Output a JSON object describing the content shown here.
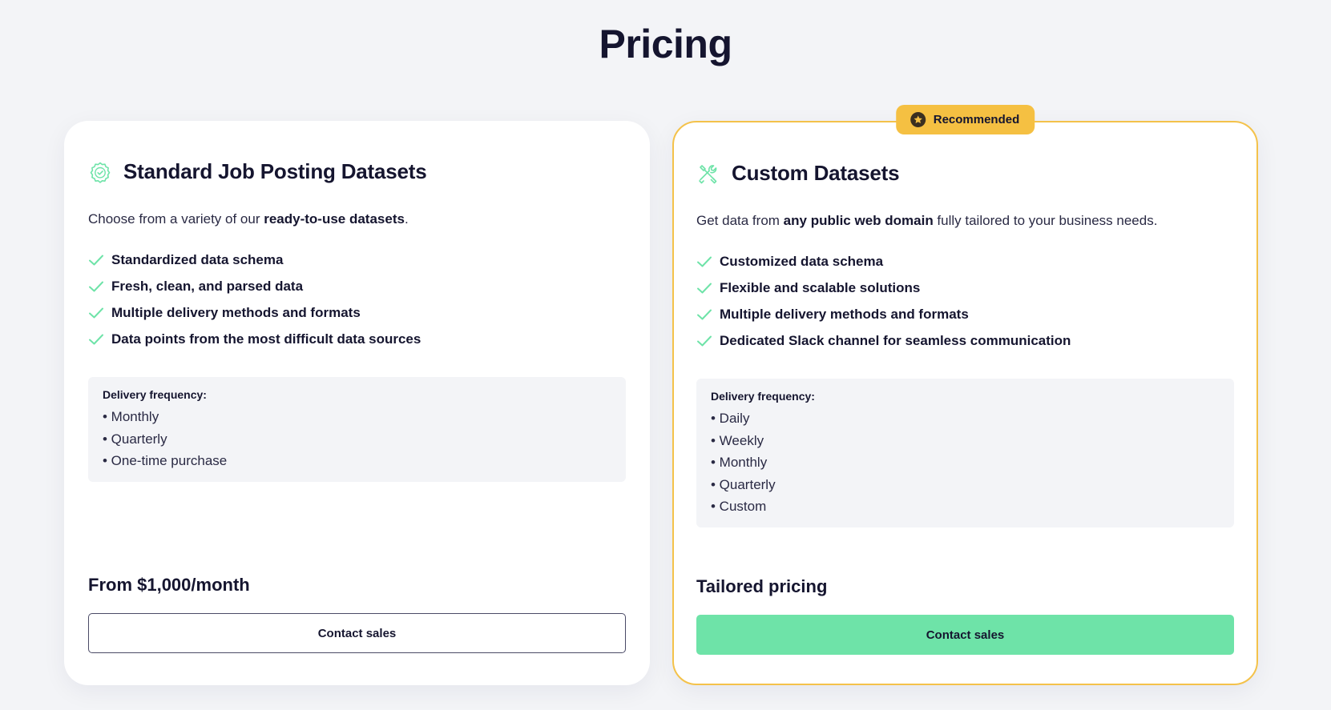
{
  "page": {
    "title": "Pricing"
  },
  "colors": {
    "accent_green": "#6ee3a8",
    "badge_yellow": "#f5c042",
    "text_dark": "#15152f"
  },
  "plans": [
    {
      "icon": "badge-check-icon",
      "title": "Standard Job Posting Datasets",
      "desc_pre": "Choose from a variety of our ",
      "desc_bold": "ready-to-use datasets",
      "desc_post": ".",
      "features": [
        "Standardized data schema",
        "Fresh, clean, and parsed data",
        "Multiple delivery methods and formats",
        "Data points from the most difficult data sources"
      ],
      "frequency_label": "Delivery frequency:",
      "frequency": [
        "• Monthly",
        "• Quarterly",
        "• One-time purchase"
      ],
      "price": "From $1,000/month",
      "cta": "Contact sales"
    },
    {
      "badge": "Recommended",
      "icon": "tools-icon",
      "title": "Custom Datasets",
      "desc_pre": "Get data from ",
      "desc_bold": "any public web domain",
      "desc_post": " fully tailored to your business needs.",
      "features": [
        "Customized data schema",
        "Flexible and scalable solutions",
        "Multiple delivery methods and formats",
        "Dedicated Slack channel for seamless communication"
      ],
      "frequency_label": "Delivery frequency:",
      "frequency": [
        "• Daily",
        "• Weekly",
        "• Monthly",
        "• Quarterly",
        "• Custom"
      ],
      "price": "Tailored pricing",
      "cta": "Contact sales"
    }
  ]
}
